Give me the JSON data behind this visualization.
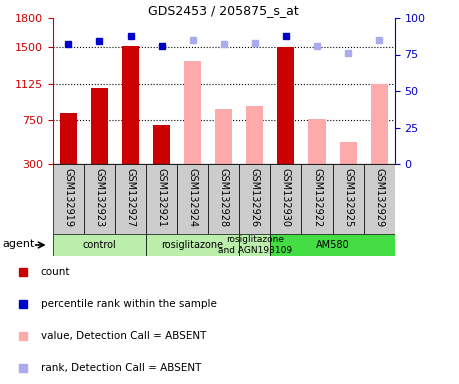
{
  "title": "GDS2453 / 205875_s_at",
  "samples": [
    "GSM132919",
    "GSM132923",
    "GSM132927",
    "GSM132921",
    "GSM132924",
    "GSM132928",
    "GSM132926",
    "GSM132930",
    "GSM132922",
    "GSM132925",
    "GSM132929"
  ],
  "bar_values": [
    820,
    1080,
    1510,
    700,
    null,
    null,
    null,
    1500,
    null,
    null,
    null
  ],
  "bar_absent_values": [
    null,
    null,
    null,
    null,
    1360,
    870,
    900,
    null,
    760,
    530,
    1125
  ],
  "rank_present": [
    82,
    84,
    88,
    81,
    null,
    null,
    null,
    88,
    null,
    null,
    null
  ],
  "rank_absent": [
    null,
    null,
    null,
    null,
    85,
    82,
    83,
    null,
    81,
    76,
    85
  ],
  "ylim_left": [
    300,
    1800
  ],
  "ylim_right": [
    0,
    100
  ],
  "yticks_left": [
    300,
    750,
    1125,
    1500,
    1800
  ],
  "yticks_right": [
    0,
    25,
    50,
    75,
    100
  ],
  "hlines": [
    750,
    1125,
    1500
  ],
  "groups": [
    {
      "label": "control",
      "start": 0,
      "end": 3,
      "color": "#bbeeaa"
    },
    {
      "label": "rosiglitazone",
      "start": 3,
      "end": 6,
      "color": "#bbeeaa"
    },
    {
      "label": "rosiglitazone\nand AGN193109",
      "start": 6,
      "end": 7,
      "color": "#bbeeaa"
    },
    {
      "label": "AM580",
      "start": 7,
      "end": 11,
      "color": "#44dd44"
    }
  ],
  "bar_color_present": "#cc0000",
  "bar_color_absent": "#ffaaaa",
  "dot_color_present": "#0000cc",
  "dot_color_absent": "#aaaaee",
  "bar_width": 0.55,
  "background_color": "#ffffff",
  "plot_bg": "#ffffff",
  "axis_left_color": "#cc0000",
  "axis_right_color": "#0000cc",
  "xlabel_bg": "#cccccc",
  "legend_items": [
    {
      "color": "#cc0000",
      "label": "count"
    },
    {
      "color": "#0000cc",
      "label": "percentile rank within the sample"
    },
    {
      "color": "#ffaaaa",
      "label": "value, Detection Call = ABSENT"
    },
    {
      "color": "#aaaaee",
      "label": "rank, Detection Call = ABSENT"
    }
  ]
}
